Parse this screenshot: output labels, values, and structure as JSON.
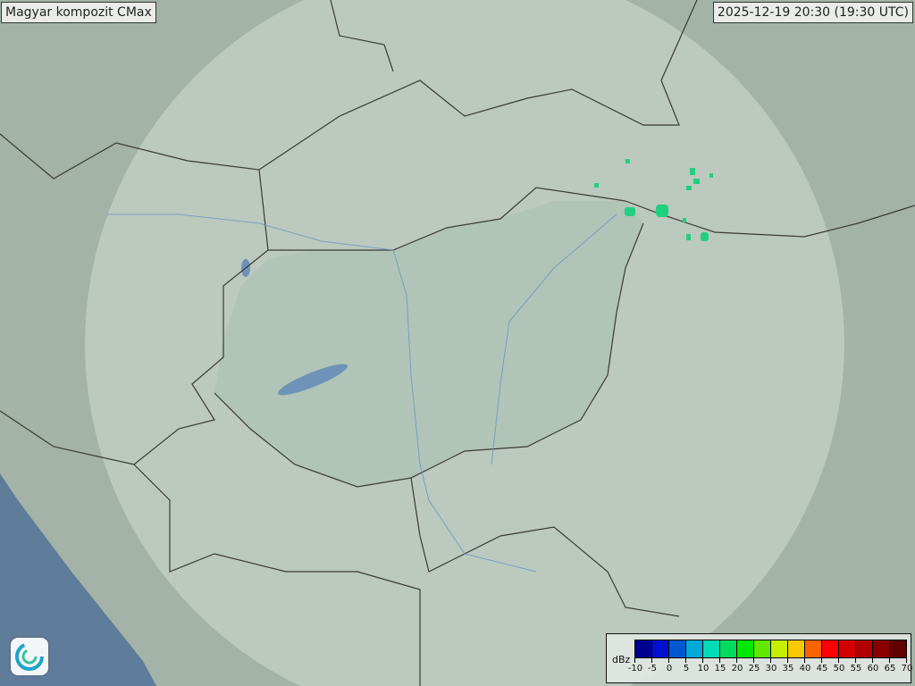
{
  "title": "Magyar kompozit  CMax",
  "timestamp": "2025-12-19 20:30 (19:30 UTC)",
  "legend": {
    "unit": "dBz",
    "ticks": [
      "-10",
      "-5",
      "0",
      "5",
      "10",
      "15",
      "20",
      "25",
      "30",
      "35",
      "40",
      "45",
      "50",
      "55",
      "60",
      "65",
      "70"
    ],
    "colors": [
      "#000090",
      "#0010d0",
      "#0058d0",
      "#00aad8",
      "#00dcb8",
      "#00dc60",
      "#00e800",
      "#60e800",
      "#c4f000",
      "#f8c800",
      "#f86400",
      "#ff0000",
      "#d40000",
      "#b00000",
      "#880000",
      "#600000"
    ]
  },
  "colors": {
    "land": "#9fb0a4",
    "coverage": "#c3d0c6",
    "sea": "#5f7d9a",
    "lake": "#6f93b8",
    "border": "#3a3a3a",
    "echo": "#20d080"
  },
  "logo_icon": "weather-service-logo-icon"
}
